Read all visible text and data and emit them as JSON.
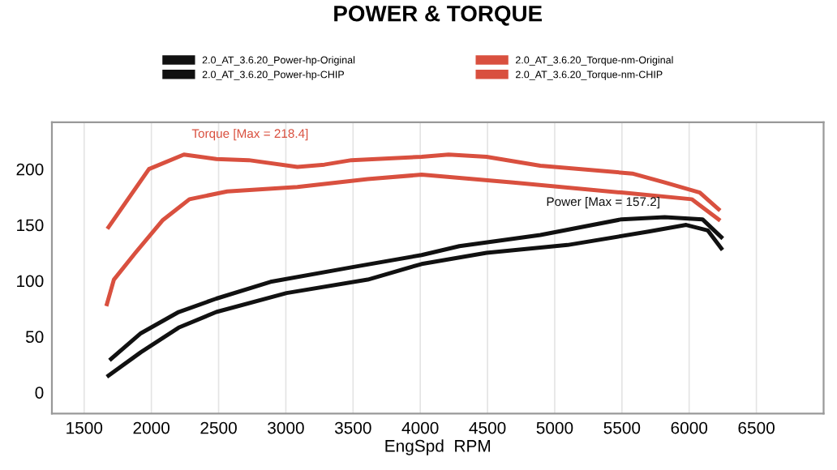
{
  "chart_data": {
    "type": "line",
    "title": "POWER & TORQUE",
    "xlabel": "EngSpd  RPM",
    "series": [
      {
        "name": "2.0_AT_3.6.20_Power-hp-Original",
        "color": "#111111",
        "x": [
          1681,
          1922,
          2203,
          2483,
          3006,
          3609,
          4010,
          4493,
          5095,
          5698,
          5978,
          6139,
          6239
        ],
        "values": [
          15,
          36,
          58,
          72,
          89,
          101,
          115,
          125,
          132,
          144,
          150,
          145,
          129
        ]
      },
      {
        "name": "2.0_AT_3.6.20_Power-hp-CHIP",
        "color": "#111111",
        "x": [
          1700,
          1922,
          2203,
          2483,
          2886,
          3488,
          4010,
          4291,
          4893,
          5496,
          5818,
          6099,
          6239
        ],
        "values": [
          30,
          53,
          72,
          84,
          99,
          112,
          123,
          131,
          141,
          155,
          157,
          155,
          139
        ]
      },
      {
        "name": "2.0_AT_3.6.20_Torque-nm-Original",
        "color": "#d9503f",
        "x": [
          1669,
          1721,
          1881,
          2082,
          2283,
          2564,
          3086,
          3609,
          4010,
          4693,
          5496,
          6019,
          6219
        ],
        "values": [
          79,
          101,
          125,
          154,
          173,
          180,
          184,
          191,
          195,
          188,
          179,
          173,
          155
        ]
      },
      {
        "name": "2.0_AT_3.6.20_Torque-nm-CHIP",
        "color": "#d9503f",
        "x": [
          1681,
          1982,
          2242,
          2483,
          2724,
          3086,
          3287,
          3488,
          4010,
          4211,
          4493,
          4893,
          5577,
          5818,
          6079,
          6219
        ],
        "values": [
          148,
          200,
          213,
          209,
          208,
          202,
          204,
          208,
          211,
          213,
          211,
          203,
          196,
          188,
          179,
          164
        ]
      }
    ],
    "xlim": [
      1260,
      7000
    ],
    "xticks": [
      1500,
      2000,
      2500,
      3000,
      3500,
      4000,
      4500,
      5000,
      5500,
      6000,
      6500
    ],
    "ylim": [
      -19,
      242
    ],
    "yticks": [
      0,
      50,
      100,
      150,
      200
    ],
    "annotations": [
      {
        "text": "Torque [Max = 218.4]",
        "x": 2300,
        "y": 218
      },
      {
        "text": "Power [Max = 157.2]",
        "x": 5818,
        "y": 157
      }
    ],
    "grid": "x",
    "legend": "top",
    "marker": "none",
    "line_style": "solid"
  }
}
